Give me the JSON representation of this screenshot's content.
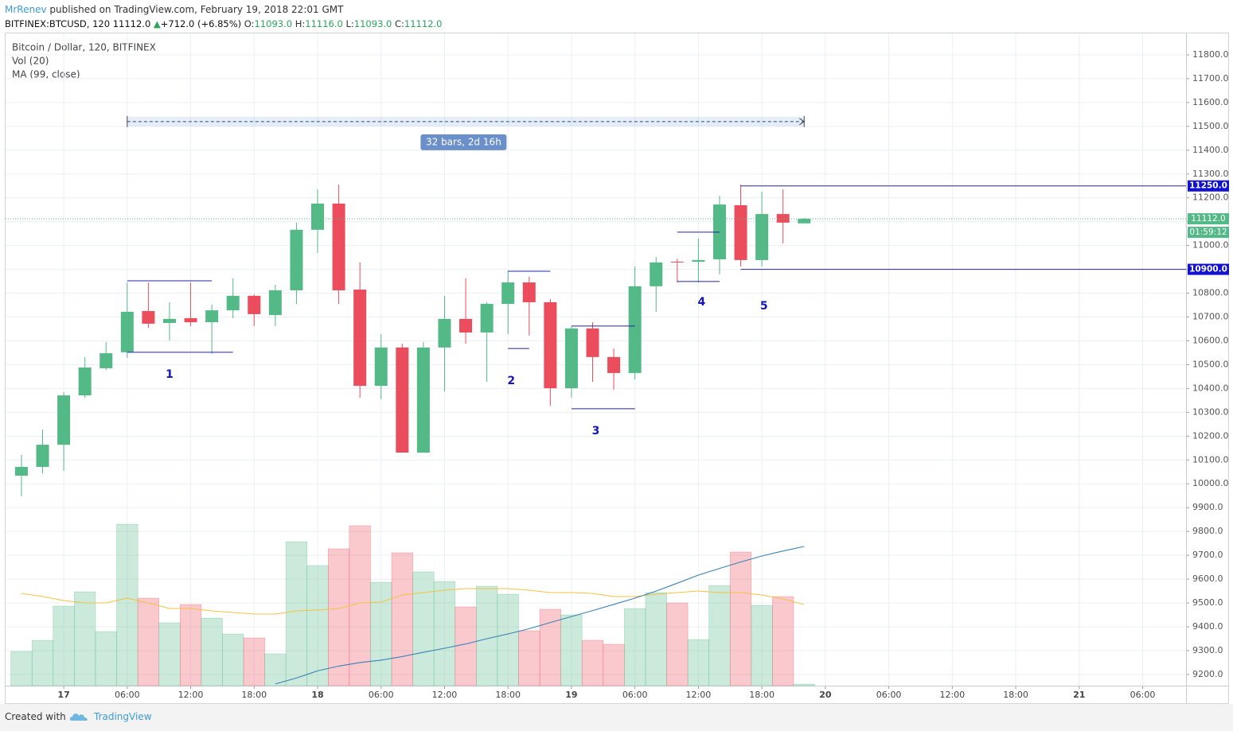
{
  "header": {
    "author": "MrRenev",
    "published": "published on TradingView.com, February 19, 2018 22:01 GMT",
    "symbol": "BITFINEX:BTCUSD, 120",
    "last": "11112.0",
    "arrow": "▲",
    "change": "+712.0 (+6.85%)",
    "o_label": "O:",
    "o": "11093.0",
    "h_label": "H:",
    "h": "11116.0",
    "l_label": "L:",
    "l": "11093.0",
    "c_label": "C:",
    "c": "11112.0"
  },
  "footer": {
    "created": "Created with",
    "brand": "TradingView"
  },
  "chart_data": {
    "type": "candlestick",
    "title": "Bitcoin / Dollar, 120, BITFINEX",
    "x": [
      -4,
      -2,
      0,
      2,
      4,
      6,
      8,
      10,
      12,
      14,
      16,
      18,
      20,
      22,
      24,
      26,
      28,
      30,
      32,
      34,
      36,
      38,
      40,
      42,
      44,
      46,
      48,
      50,
      52,
      54,
      56,
      58,
      60,
      62,
      64,
      66,
      68,
      70
    ],
    "open": [
      10034,
      10071,
      10164,
      10371,
      10485,
      10552,
      10725,
      10675,
      10695,
      10678,
      10728,
      10789,
      10708,
      10812,
      11066,
      11176,
      10815,
      10411,
      10572,
      10131,
      10572,
      10692,
      10635,
      10755,
      10845,
      10762,
      10401,
      10652,
      10532,
      10465,
      10829,
      10932,
      10932,
      10942,
      11169,
      10939,
      11132,
      11093
    ],
    "high": [
      10121,
      10228,
      10385,
      10532,
      10595,
      10845,
      10845,
      10762,
      10845,
      10752,
      10862,
      10795,
      10835,
      11096,
      11236,
      11256,
      10929,
      10628,
      10588,
      10595,
      10789,
      10862,
      10762,
      10895,
      10869,
      10775,
      10662,
      10678,
      10568,
      10912,
      10952,
      10945,
      11029,
      11209,
      11256,
      11226,
      11236,
      11116
    ],
    "low": [
      9947,
      10044,
      10054,
      10361,
      10478,
      10528,
      10655,
      10602,
      10662,
      10545,
      10695,
      10662,
      10662,
      10755,
      10969,
      10755,
      10361,
      10355,
      10131,
      10131,
      10388,
      10588,
      10428,
      10628,
      10622,
      10328,
      10361,
      10428,
      10395,
      10438,
      10722,
      10845,
      10845,
      10879,
      10912,
      10912,
      11009,
      11093
    ],
    "close": [
      10071,
      10164,
      10371,
      10488,
      10548,
      10722,
      10672,
      10692,
      10678,
      10728,
      10789,
      10712,
      10812,
      11066,
      11176,
      10812,
      10411,
      10572,
      10131,
      10572,
      10692,
      10635,
      10755,
      10845,
      10762,
      10401,
      10652,
      10532,
      10465,
      10829,
      10929,
      10929,
      10939,
      11172,
      10939,
      11132,
      11096,
      11112
    ],
    "up_color": "#53b987",
    "down_color": "#eb4d5c",
    "xlim": [
      -5.5,
      106.1
    ],
    "xticks": [
      {
        "value": 0,
        "label": "17"
      },
      {
        "value": 6,
        "label": "06:00"
      },
      {
        "value": 12,
        "label": "12:00"
      },
      {
        "value": 18,
        "label": "18:00"
      },
      {
        "value": 24,
        "label": "18"
      },
      {
        "value": 30,
        "label": "06:00"
      },
      {
        "value": 36,
        "label": "12:00"
      },
      {
        "value": 42,
        "label": "18:00"
      },
      {
        "value": 48,
        "label": "19"
      },
      {
        "value": 54,
        "label": "06:00"
      },
      {
        "value": 60,
        "label": "12:00"
      },
      {
        "value": 66,
        "label": "18:00"
      },
      {
        "value": 72,
        "label": "20"
      },
      {
        "value": 78,
        "label": "06:00"
      },
      {
        "value": 84,
        "label": "12:00"
      },
      {
        "value": 90,
        "label": "18:00"
      },
      {
        "value": 96,
        "label": "21"
      },
      {
        "value": 102,
        "label": "06:00"
      }
    ],
    "ylim": [
      9153,
      11890
    ],
    "yticks": [
      {
        "value": 9200,
        "label": "9200.0"
      },
      {
        "value": 9300,
        "label": "9300.0"
      },
      {
        "value": 9400,
        "label": "9400.0"
      },
      {
        "value": 9500,
        "label": "9500.0"
      },
      {
        "value": 9600,
        "label": "9600.0"
      },
      {
        "value": 9700,
        "label": "9700.0"
      },
      {
        "value": 9800,
        "label": "9800.0"
      },
      {
        "value": 9900,
        "label": "9900.0"
      },
      {
        "value": 10000,
        "label": "10000.0"
      },
      {
        "value": 10100,
        "label": "10100.0"
      },
      {
        "value": 10200,
        "label": "10200.0"
      },
      {
        "value": 10300,
        "label": "10300.0"
      },
      {
        "value": 10400,
        "label": "10400.0"
      },
      {
        "value": 10500,
        "label": "10500.0"
      },
      {
        "value": 10600,
        "label": "10600.0"
      },
      {
        "value": 10700,
        "label": "10700.0"
      },
      {
        "value": 10800,
        "label": "10800.0"
      },
      {
        "value": 10900,
        "label": "10900.0"
      },
      {
        "value": 11000,
        "label": "11000.0"
      },
      {
        "value": 11100,
        "label": "11100.0"
      },
      {
        "value": 11200,
        "label": "11200.0"
      },
      {
        "value": 11300,
        "label": "11300.0"
      },
      {
        "value": 11400,
        "label": "11400.0"
      },
      {
        "value": 11500,
        "label": "11500.0"
      },
      {
        "value": 11600,
        "label": "11600.0"
      },
      {
        "value": 11700,
        "label": "11700.0"
      },
      {
        "value": 11800,
        "label": "11800.0"
      }
    ],
    "grid": true,
    "volume": {
      "name": "Vol (20)",
      "ylim": [
        0,
        820
      ],
      "up_fill": "rgba(83,185,135,0.3)",
      "down_fill": "rgba(235,77,92,0.3)",
      "values": [
        43,
        57,
        100,
        118,
        68,
        203,
        110,
        79,
        102,
        85,
        65,
        60,
        40,
        181,
        151,
        172,
        201,
        130,
        167,
        143,
        131,
        99,
        125,
        115,
        69,
        96,
        89,
        57,
        52,
        97,
        117,
        104,
        58,
        126,
        168,
        101,
        112,
        2
      ],
      "ma": {
        "color": "#f5c242",
        "values": [
          116,
          112,
          107,
          104,
          104,
          110,
          104,
          97,
          97,
          94,
          92,
          90,
          90,
          94,
          95,
          97,
          104,
          105,
          114,
          117,
          120,
          122,
          122,
          122,
          120,
          117,
          117,
          116,
          112,
          112,
          115,
          117,
          119,
          117,
          117,
          114,
          109,
          102
        ]
      }
    },
    "ma": {
      "name": "MA (99, close)",
      "color": "#3b82b4",
      "values": [
        null,
        null,
        null,
        null,
        null,
        null,
        null,
        null,
        null,
        null,
        null,
        null,
        9160,
        9185,
        9215,
        9235,
        9250,
        9260,
        9275,
        9293,
        9310,
        9328,
        9350,
        9370,
        9392,
        9418,
        9443,
        9468,
        9494,
        9520,
        9550,
        9583,
        9617,
        9645,
        9672,
        9697,
        9718,
        9737
      ]
    },
    "last_price": {
      "value": 11112,
      "label": "11112.0",
      "countdown": "01:59:12",
      "color": "#53b987"
    },
    "drawing_color": "#2323a8",
    "drawings": [
      {
        "x1": 6,
        "x2": 14,
        "y": 10852
      },
      {
        "x1": 6,
        "x2": 16,
        "y": 10552
      },
      {
        "x1": 42,
        "x2": 46,
        "y": 10892
      },
      {
        "x1": 42,
        "x2": 44,
        "y": 10568
      },
      {
        "x1": 48,
        "x2": 54,
        "y": 10662
      },
      {
        "x1": 48,
        "x2": 54,
        "y": 10315
      },
      {
        "x1": 58,
        "x2": 62,
        "y": 11056
      },
      {
        "x1": 58,
        "x2": 62,
        "y": 10849
      },
      {
        "x1": 64,
        "y": 11250,
        "extend": true,
        "label": "11250.0"
      },
      {
        "x1": 64,
        "y": 10900,
        "extend": true,
        "label": "10900.0"
      }
    ],
    "annotations": [
      {
        "text": "1",
        "x": 10,
        "y": 10458
      },
      {
        "text": "2",
        "x": 42.3,
        "y": 10431
      },
      {
        "text": "3",
        "x": 50.3,
        "y": 10221
      },
      {
        "text": "4",
        "x": 60.3,
        "y": 10762
      },
      {
        "text": "5",
        "x": 66.2,
        "y": 10745
      }
    ],
    "measure": {
      "x1": 6,
      "x2": 70,
      "y": 11520,
      "label": "32 bars, 2d 16h",
      "label_x": 37.8,
      "label_y": 11433
    }
  }
}
